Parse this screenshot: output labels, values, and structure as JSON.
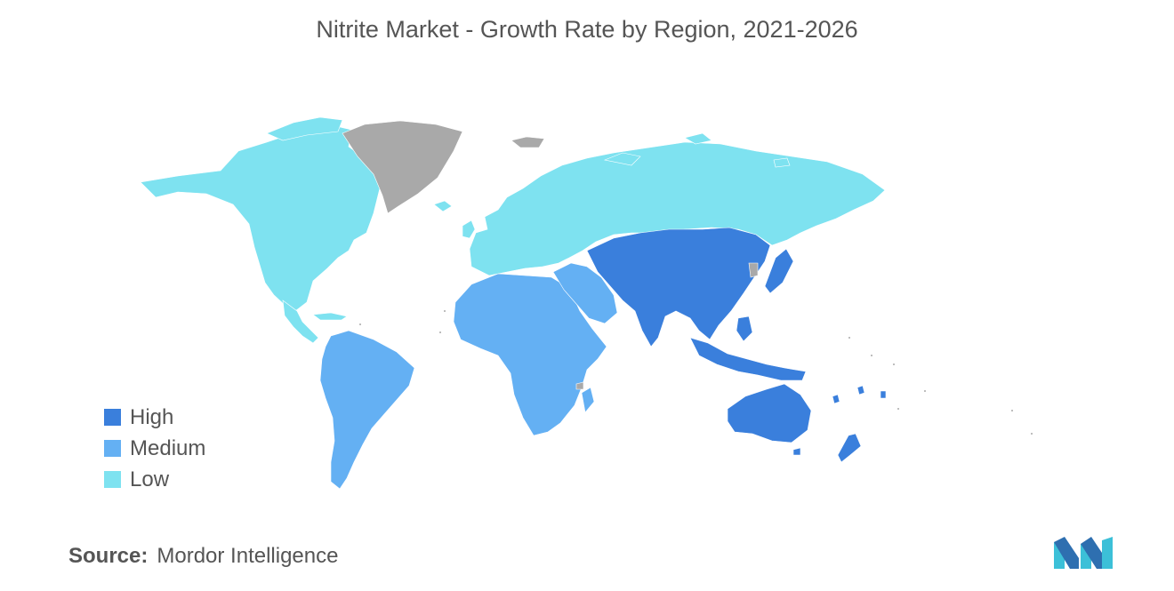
{
  "title": "Nitrite Market - Growth Rate by Region, 2021-2026",
  "legend": [
    {
      "label": "High",
      "color": "#3a7fdc"
    },
    {
      "label": "Medium",
      "color": "#64b0f3"
    },
    {
      "label": "Low",
      "color": "#7ee2f0"
    }
  ],
  "no_data_color": "#a9a9a9",
  "regions": [
    {
      "name": "North America",
      "level": "Low"
    },
    {
      "name": "Europe and Russia",
      "level": "Low"
    },
    {
      "name": "South America",
      "level": "Medium"
    },
    {
      "name": "Middle East and Africa",
      "level": "Medium"
    },
    {
      "name": "Asia-Pacific",
      "level": "High"
    },
    {
      "name": "Greenland",
      "level": "No data"
    }
  ],
  "source": {
    "label": "Source:",
    "text": "Mordor Intelligence"
  }
}
